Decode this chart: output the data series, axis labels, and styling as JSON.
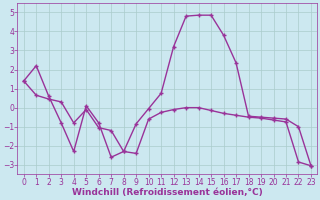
{
  "line1_x": [
    0,
    1,
    2,
    3,
    4,
    5,
    6,
    7,
    8,
    9,
    10,
    11,
    12,
    13,
    14,
    15,
    16,
    17,
    18,
    19,
    20,
    21,
    22,
    23
  ],
  "line1_y": [
    1.4,
    2.2,
    0.6,
    -0.8,
    -2.3,
    0.1,
    -0.8,
    -2.6,
    -2.3,
    -0.85,
    -0.05,
    0.75,
    3.2,
    4.8,
    4.85,
    4.85,
    3.8,
    2.35,
    -0.45,
    -0.5,
    -0.55,
    -0.6,
    -1.0,
    -3.05
  ],
  "line2_x": [
    0,
    1,
    2,
    3,
    4,
    5,
    6,
    7,
    8,
    9,
    10,
    11,
    12,
    13,
    14,
    15,
    16,
    17,
    18,
    19,
    20,
    21,
    22,
    23
  ],
  "line2_y": [
    1.4,
    0.65,
    0.45,
    0.3,
    -0.8,
    -0.1,
    -1.05,
    -1.2,
    -2.3,
    -2.4,
    -0.6,
    -0.25,
    -0.1,
    0.0,
    0.0,
    -0.15,
    -0.3,
    -0.4,
    -0.5,
    -0.55,
    -0.65,
    -0.75,
    -2.85,
    -3.05
  ],
  "line_color": "#993399",
  "background_color": "#cce8f0",
  "grid_color": "#aacccc",
  "xlabel": "Windchill (Refroidissement éolien,°C)",
  "xlim": [
    -0.5,
    23.5
  ],
  "ylim": [
    -3.5,
    5.5
  ],
  "yticks": [
    -3,
    -2,
    -1,
    0,
    1,
    2,
    3,
    4,
    5
  ],
  "xticks": [
    0,
    1,
    2,
    3,
    4,
    5,
    6,
    7,
    8,
    9,
    10,
    11,
    12,
    13,
    14,
    15,
    16,
    17,
    18,
    19,
    20,
    21,
    22,
    23
  ],
  "marker": "+",
  "marker_size": 3,
  "line_width": 1.0,
  "tick_fontsize": 5.5,
  "xlabel_fontsize": 6.5
}
